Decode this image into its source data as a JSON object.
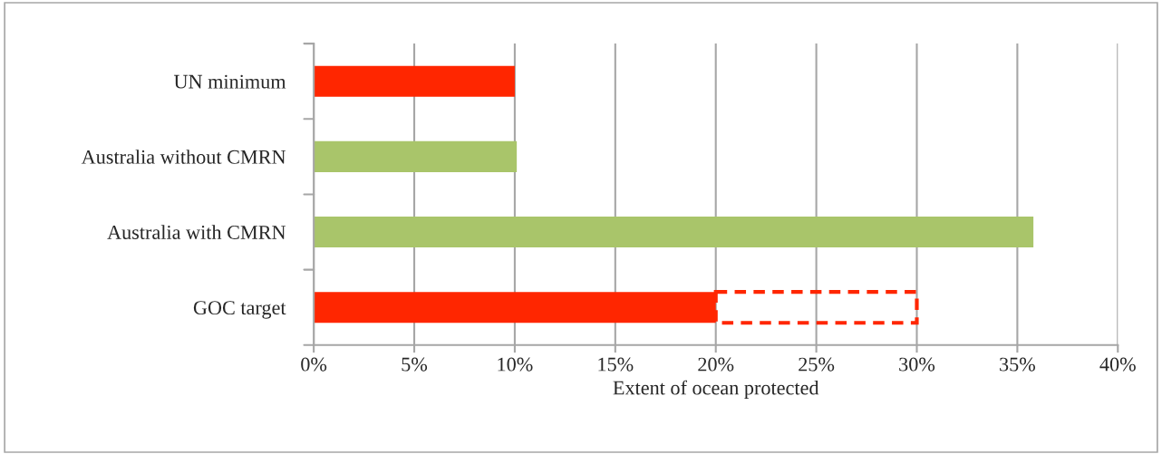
{
  "chart_data": {
    "type": "bar",
    "orientation": "horizontal",
    "stacked": true,
    "xlabel": "Extent of ocean protected",
    "categories": [
      "UN minimum",
      "Australia without CMRN",
      "Australia with CMRN",
      "GOC target"
    ],
    "series": [
      {
        "colors": [
          "#ff2600",
          "#a9c56a",
          "#a9c56a",
          "#ff2600"
        ],
        "values": [
          10,
          10.1,
          35.8,
          20
        ]
      },
      {
        "color": "#ff2600",
        "line_style": "dashed",
        "values": [
          null,
          null,
          null,
          10
        ]
      }
    ],
    "xlim": [
      0,
      40
    ],
    "xticks": [
      {
        "value": 0,
        "label": "0%"
      },
      {
        "value": 5,
        "label": "5%"
      },
      {
        "value": 10,
        "label": "10%"
      },
      {
        "value": 15,
        "label": "15%"
      },
      {
        "value": 20,
        "label": "20%"
      },
      {
        "value": 25,
        "label": "25%"
      },
      {
        "value": 30,
        "label": "30%"
      },
      {
        "value": 35,
        "label": "35%"
      },
      {
        "value": 40,
        "label": "40%"
      }
    ],
    "grid": "x",
    "legend": false
  }
}
